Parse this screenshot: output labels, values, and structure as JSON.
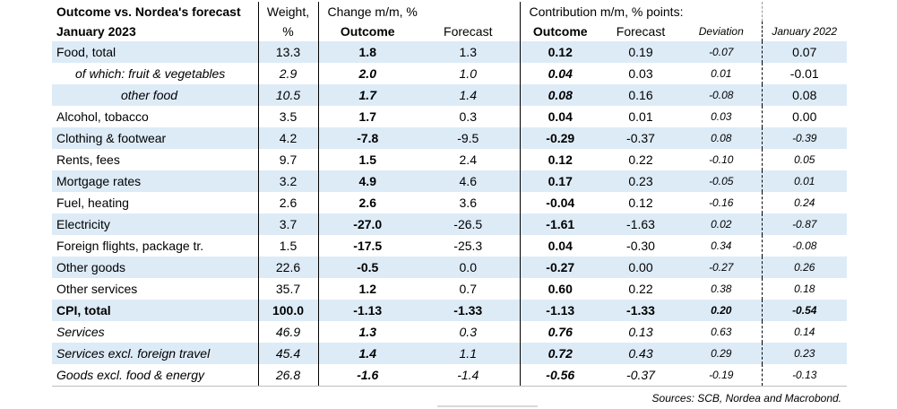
{
  "header": {
    "title_line1": "Outcome vs. Nordea's forecast",
    "title_line2": "January 2023",
    "weight_line1": "Weight,",
    "weight_line2": "%",
    "change_group": "Change m/m, %",
    "contribution_group": "Contribution m/m, % points:",
    "outcome": "Outcome",
    "forecast": "Forecast",
    "outcome2": "Outcome",
    "forecast2": "Forecast",
    "deviation": "Deviation",
    "prev_year": "January 2022"
  },
  "rows": [
    {
      "label": "Food, total",
      "weight": "13.3",
      "change_outcome": "1.8",
      "change_forecast": "1.3",
      "contrib_outcome": "0.12",
      "contrib_forecast": "0.19",
      "deviation": "-0.07",
      "prev": "0.07"
    },
    {
      "label": "of which: fruit & vegetables",
      "weight": "2.9",
      "change_outcome": "2.0",
      "change_forecast": "1.0",
      "contrib_outcome": "0.04",
      "contrib_forecast": "0.03",
      "deviation": "0.01",
      "prev": "-0.01"
    },
    {
      "label": "other food",
      "weight": "10.5",
      "change_outcome": "1.7",
      "change_forecast": "1.4",
      "contrib_outcome": "0.08",
      "contrib_forecast": "0.16",
      "deviation": "-0.08",
      "prev": "0.08"
    },
    {
      "label": "Alcohol, tobacco",
      "weight": "3.5",
      "change_outcome": "1.7",
      "change_forecast": "0.3",
      "contrib_outcome": "0.04",
      "contrib_forecast": "0.01",
      "deviation": "0.03",
      "prev": "0.00"
    },
    {
      "label": "Clothing & footwear",
      "weight": "4.2",
      "change_outcome": "-7.8",
      "change_forecast": "-9.5",
      "contrib_outcome": "-0.29",
      "contrib_forecast": "-0.37",
      "deviation": "0.08",
      "prev": "-0.39"
    },
    {
      "label": "Rents, fees",
      "weight": "9.7",
      "change_outcome": "1.5",
      "change_forecast": "2.4",
      "contrib_outcome": "0.12",
      "contrib_forecast": "0.22",
      "deviation": "-0.10",
      "prev": "0.05"
    },
    {
      "label": "Mortgage rates",
      "weight": "3.2",
      "change_outcome": "4.9",
      "change_forecast": "4.6",
      "contrib_outcome": "0.17",
      "contrib_forecast": "0.23",
      "deviation": "-0.05",
      "prev": "0.01"
    },
    {
      "label": "Fuel, heating",
      "weight": "2.6",
      "change_outcome": "2.6",
      "change_forecast": "3.6",
      "contrib_outcome": "-0.04",
      "contrib_forecast": "0.12",
      "deviation": "-0.16",
      "prev": "0.24"
    },
    {
      "label": "Electricity",
      "weight": "3.7",
      "change_outcome": "-27.0",
      "change_forecast": "-26.5",
      "contrib_outcome": "-1.61",
      "contrib_forecast": "-1.63",
      "deviation": "0.02",
      "prev": "-0.87"
    },
    {
      "label": "Foreign flights, package tr.",
      "weight": "1.5",
      "change_outcome": "-17.5",
      "change_forecast": "-25.3",
      "contrib_outcome": "0.04",
      "contrib_forecast": "-0.30",
      "deviation": "0.34",
      "prev": "-0.08"
    },
    {
      "label": "Other goods",
      "weight": "22.6",
      "change_outcome": "-0.5",
      "change_forecast": "0.0",
      "contrib_outcome": "-0.27",
      "contrib_forecast": "0.00",
      "deviation": "-0.27",
      "prev": "0.26"
    },
    {
      "label": "Other services",
      "weight": "35.7",
      "change_outcome": "1.2",
      "change_forecast": "0.7",
      "contrib_outcome": "0.60",
      "contrib_forecast": "0.22",
      "deviation": "0.38",
      "prev": "0.18"
    },
    {
      "label": "CPI, total",
      "weight": "100.0",
      "change_outcome": "-1.13",
      "change_forecast": "-1.33",
      "contrib_outcome": "-1.13",
      "contrib_forecast": "-1.33",
      "deviation": "0.20",
      "prev": "-0.54"
    },
    {
      "label": "Services",
      "weight": "46.9",
      "change_outcome": "1.3",
      "change_forecast": "0.3",
      "contrib_outcome": "0.76",
      "contrib_forecast": "0.13",
      "deviation": "0.63",
      "prev": "0.14"
    },
    {
      "label": "Services excl. foreign travel",
      "weight": "45.4",
      "change_outcome": "1.4",
      "change_forecast": "1.1",
      "contrib_outcome": "0.72",
      "contrib_forecast": "0.43",
      "deviation": "0.29",
      "prev": "0.23"
    },
    {
      "label": "Goods excl. food & energy",
      "weight": "26.8",
      "change_outcome": "-1.6",
      "change_forecast": "-1.4",
      "contrib_outcome": "-0.56",
      "contrib_forecast": "-0.37",
      "deviation": "-0.19",
      "prev": "-0.13"
    }
  ],
  "source": "Sources: SCB, Nordea and Macrobond."
}
